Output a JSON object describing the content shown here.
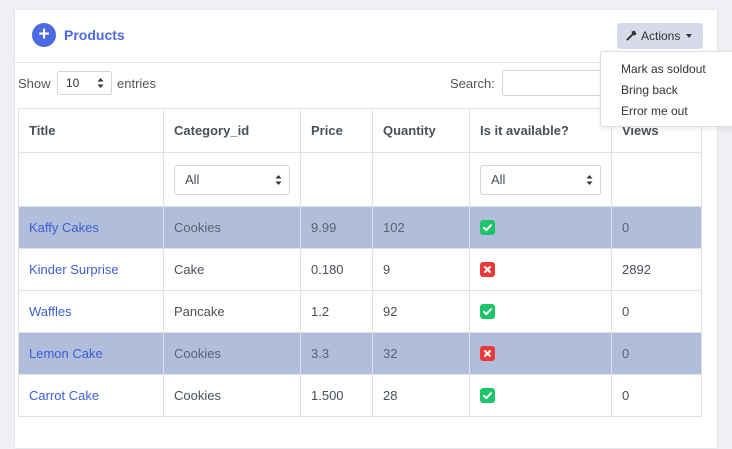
{
  "header": {
    "title": "Products",
    "actions_label": "Actions"
  },
  "actions_menu": [
    "Mark as soldout",
    "Bring back",
    "Error me out"
  ],
  "length": {
    "show_label": "Show",
    "value": "10",
    "entries_label": "entries"
  },
  "search": {
    "label": "Search:",
    "value": ""
  },
  "table": {
    "columns": [
      "Title",
      "Category_id",
      "Price",
      "Quantity",
      "Is it available?",
      "Views"
    ],
    "filters": {
      "category": "All",
      "available": "All"
    },
    "rows": [
      {
        "title": "Kaffy Cakes",
        "category": "Cookies",
        "price": "9.99",
        "quantity": "102",
        "available": true,
        "views": "0",
        "selected": true
      },
      {
        "title": "Kinder Surprise",
        "category": "Cake",
        "price": "0.180",
        "quantity": "9",
        "available": false,
        "views": "2892",
        "selected": false
      },
      {
        "title": "Waffles",
        "category": "Pancake",
        "price": "1.2",
        "quantity": "92",
        "available": true,
        "views": "0",
        "selected": false
      },
      {
        "title": "Lemon Cake",
        "category": "Cookies",
        "price": "3.3",
        "quantity": "32",
        "available": false,
        "views": "0",
        "selected": true
      },
      {
        "title": "Carrot Cake",
        "category": "Cookies",
        "price": "1.500",
        "quantity": "28",
        "available": true,
        "views": "0",
        "selected": false
      }
    ]
  },
  "colors": {
    "accent": "#4e6ae0",
    "selected_row": "#b1bedb",
    "available_yes": "#1ec46a",
    "available_no": "#ea3a3a"
  },
  "icons": {
    "add": "plus-circle-icon",
    "actions": "hammer-icon",
    "available_yes": "check-square-icon",
    "available_no": "x-square-icon"
  }
}
